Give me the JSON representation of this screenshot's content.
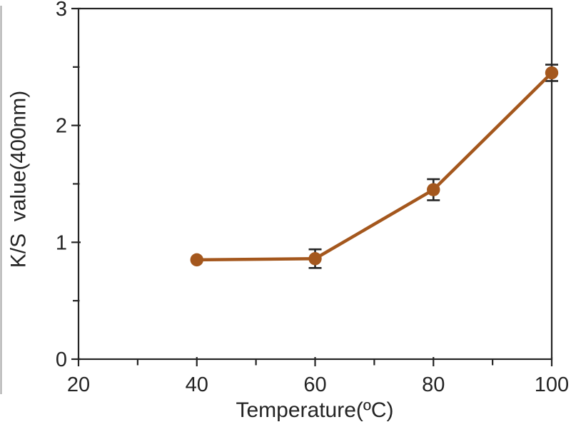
{
  "chart_data": {
    "type": "line",
    "title": "",
    "xlabel": "Temperature(ºC)",
    "ylabel": "K/S  value(400nm)",
    "x": [
      40,
      60,
      80,
      100
    ],
    "y": [
      0.85,
      0.86,
      1.45,
      2.45
    ],
    "y_err": [
      0,
      0.08,
      0.09,
      0.07
    ],
    "xlim": [
      20,
      100
    ],
    "ylim": [
      0,
      3
    ],
    "x_major_ticks": [
      20,
      40,
      60,
      80,
      100
    ],
    "x_minor_ticks": [
      30,
      50,
      70,
      90
    ],
    "y_major_ticks": [
      0,
      1,
      2,
      3
    ],
    "y_minor_ticks": [
      0.5,
      1.5,
      2.5
    ],
    "grid": false,
    "legend": "none",
    "marker": "circle",
    "line_color": "#A4571D",
    "marker_color": "#A4571D",
    "error_bar_color": "#262626",
    "axis_color": "#242424",
    "text_color": "#242424",
    "background": "#ffffff"
  }
}
